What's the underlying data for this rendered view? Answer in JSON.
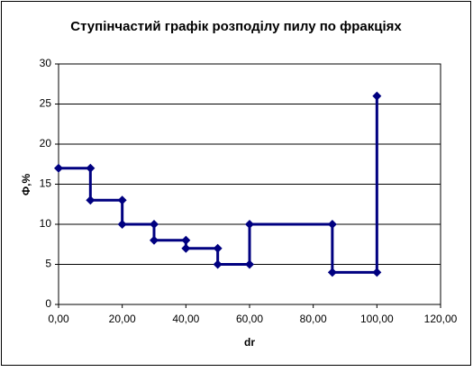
{
  "chart_data": {
    "type": "line",
    "title": "Ступінчастий графік розподілу пилу по фракціях",
    "x_label": "dr",
    "y_label": "Ф,%",
    "x": [
      0,
      10,
      10,
      20,
      20,
      30,
      30,
      40,
      40,
      50,
      50,
      60,
      60,
      86,
      86,
      100,
      100
    ],
    "values": [
      17,
      17,
      13,
      13,
      10,
      10,
      8,
      8,
      7,
      7,
      5,
      5,
      10,
      10,
      4,
      4,
      26
    ],
    "color": "#000080",
    "xlim": [
      0,
      120
    ],
    "xticks": [
      {
        "value": 0,
        "label": "0,00"
      },
      {
        "value": 20,
        "label": "20,00"
      },
      {
        "value": 40,
        "label": "40,00"
      },
      {
        "value": 60,
        "label": "60,00"
      },
      {
        "value": 80,
        "label": "80,00"
      },
      {
        "value": 100,
        "label": "100,00"
      },
      {
        "value": 120,
        "label": "120,00"
      }
    ],
    "ylim": [
      0,
      30
    ],
    "yticks": [
      0,
      5,
      10,
      15,
      20,
      25,
      30
    ],
    "grid": true
  }
}
